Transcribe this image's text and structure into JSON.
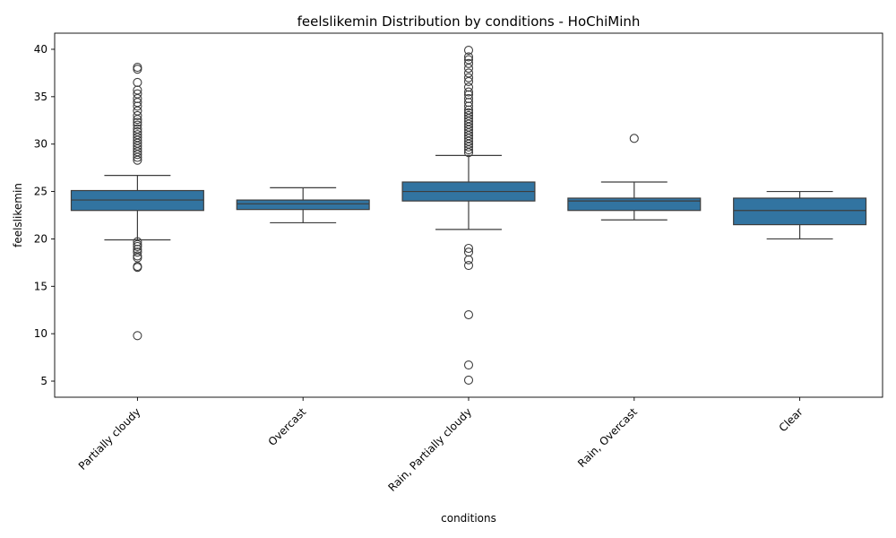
{
  "chart_data": {
    "type": "box",
    "title": "feelslikemin Distribution by conditions - HoChiMinh",
    "xlabel": "conditions",
    "ylabel": "feelslikemin",
    "ylim": [
      3.3,
      41.7
    ],
    "yticks": [
      5,
      10,
      15,
      20,
      25,
      30,
      35,
      40
    ],
    "grid": false,
    "legend": "none",
    "box_color": "#3274a1",
    "line_color": "#3d3d3d",
    "categories": [
      "Partially cloudy",
      "Overcast",
      "Rain, Partially cloudy",
      "Rain, Overcast",
      "Clear"
    ],
    "boxes": [
      {
        "category": "Partially cloudy",
        "whisker_low": 19.9,
        "q1": 23.0,
        "median": 24.1,
        "q3": 25.1,
        "whisker_high": 26.7,
        "outliers": [
          9.8,
          17.0,
          17.1,
          18.0,
          18.2,
          18.6,
          18.9,
          19.2,
          19.4,
          19.7,
          28.3,
          28.6,
          28.9,
          29.2,
          29.5,
          29.8,
          30.1,
          30.4,
          30.7,
          31.0,
          31.3,
          31.6,
          32.0,
          32.3,
          32.6,
          33.0,
          33.5,
          34.0,
          34.4,
          34.8,
          35.3,
          35.7,
          36.5,
          37.9,
          38.1
        ]
      },
      {
        "category": "Overcast",
        "whisker_low": 21.7,
        "q1": 23.1,
        "median": 23.7,
        "q3": 24.1,
        "whisker_high": 25.4,
        "outliers": []
      },
      {
        "category": "Rain, Partially cloudy",
        "whisker_low": 21.0,
        "q1": 24.0,
        "median": 25.0,
        "q3": 26.0,
        "whisker_high": 28.8,
        "outliers": [
          5.1,
          6.7,
          12.0,
          17.2,
          17.8,
          18.6,
          19.0,
          29.1,
          29.4,
          29.7,
          30.0,
          30.3,
          30.6,
          30.9,
          31.2,
          31.5,
          31.8,
          32.1,
          32.4,
          32.7,
          33.0,
          33.3,
          33.6,
          34.0,
          34.4,
          34.8,
          35.2,
          35.5,
          36.0,
          36.6,
          37.0,
          37.5,
          38.0,
          38.5,
          38.9,
          39.2,
          39.9
        ]
      },
      {
        "category": "Rain, Overcast",
        "whisker_low": 22.0,
        "q1": 23.0,
        "median": 24.0,
        "q3": 24.3,
        "whisker_high": 26.0,
        "outliers": [
          30.6
        ]
      },
      {
        "category": "Clear",
        "whisker_low": 20.0,
        "q1": 21.5,
        "median": 23.0,
        "q3": 24.3,
        "whisker_high": 25.0,
        "outliers": []
      }
    ]
  }
}
